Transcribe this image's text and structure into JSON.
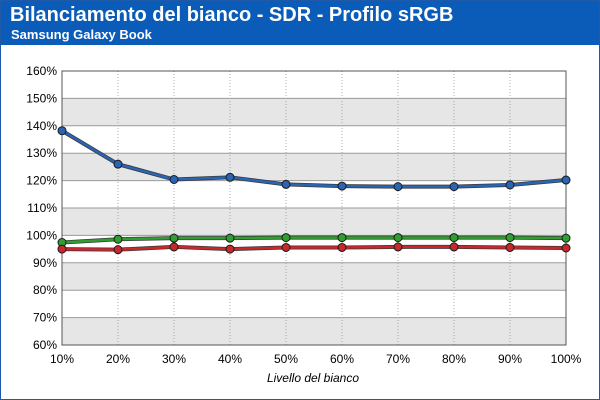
{
  "header": {
    "title": "Bilanciamento del bianco - SDR - Profilo sRGB",
    "subtitle": "Samsung Galaxy Book"
  },
  "chart_data": {
    "type": "line",
    "title": "Bilanciamento del bianco - SDR - Profilo sRGB",
    "subtitle": "Samsung Galaxy Book",
    "xlabel": "Livello del bianco",
    "ylabel": "",
    "categories": [
      "10%",
      "20%",
      "30%",
      "40%",
      "50%",
      "60%",
      "70%",
      "80%",
      "90%",
      "100%"
    ],
    "yticks": [
      "60%",
      "70%",
      "80%",
      "90%",
      "100%",
      "110%",
      "120%",
      "130%",
      "140%",
      "150%",
      "160%"
    ],
    "ylim": [
      60,
      160
    ],
    "grid": true,
    "legend": "none",
    "series": [
      {
        "color": "#2a64b4",
        "values": [
          138.2,
          126.0,
          120.4,
          121.2,
          118.6,
          118.0,
          117.8,
          117.8,
          118.4,
          120.2
        ]
      },
      {
        "color": "#2fa02f",
        "values": [
          97.4,
          98.6,
          99.0,
          99.0,
          99.2,
          99.2,
          99.2,
          99.2,
          99.2,
          99.0
        ]
      },
      {
        "color": "#c8282d",
        "values": [
          95.0,
          94.8,
          95.8,
          95.0,
          95.6,
          95.6,
          95.8,
          95.8,
          95.6,
          95.4
        ]
      }
    ]
  }
}
